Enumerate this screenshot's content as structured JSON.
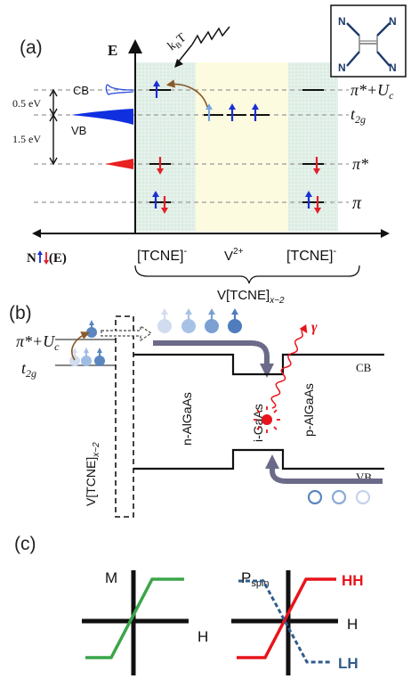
{
  "panel_a": {
    "label": "(a)",
    "energy_axis": "E",
    "kbt": "k",
    "kbt_sub": "B",
    "kbt_tail": "T",
    "cb": "CB",
    "vb": "VB",
    "gap_05": "0.5 eV",
    "gap_15": "1.5 eV",
    "level_pi_star_u": "π*+U",
    "level_pi_star_u_sub": "c",
    "level_t2g": "t",
    "level_t2g_sub": "2g",
    "level_pi_star": "π*",
    "level_pi": "π",
    "dos_label": "N",
    "dos_label_tail": "(E)",
    "region_left": "[TCNE]",
    "region_left_sup": "-",
    "region_mid": "V",
    "region_mid_sup": "2+",
    "region_right": "[TCNE]",
    "region_right_sup": "-",
    "compound": "V[TCNE]",
    "compound_sub": "x~2",
    "molecule_atoms": [
      "N",
      "N",
      "N",
      "N"
    ]
  },
  "panel_b": {
    "label": "(b)",
    "level_pi_star_u": "π*+U",
    "level_pi_star_u_sub": "c",
    "level_t2g": "t",
    "level_t2g_sub": "2g",
    "vtcne": "V[TCNE]",
    "vtcne_sub": "x~2",
    "n_layer": "n-AlGaAs",
    "i_layer": "i-GaAs",
    "p_layer": "p-AlGaAs",
    "cb": "CB",
    "vb": "VB",
    "photon": "γ"
  },
  "panel_c": {
    "label": "(c)",
    "m_axis": "M",
    "h_axis_left": "H",
    "p_axis": "P",
    "p_axis_sub": "spin",
    "h_axis_right": "H",
    "hh": "HH",
    "lh": "LH"
  },
  "colors": {
    "spin_up": "#1b2fd6",
    "spin_down": "#e0202a",
    "spin_up_light": "#7aa6e8",
    "vb_fill": "#1030e0",
    "pi_star_fill": "#e82020",
    "green": "#3aa64a",
    "hh": "#e8141b",
    "lh": "#2f5d8c",
    "arrow_grey": "#6b6a88",
    "ball_blue": "#5b86c0",
    "region_green": "#e7f3ec",
    "region_yellow": "#fdfbdf"
  },
  "icons": [
    "tcne-molecule-icon",
    "kbt-wave-icon",
    "photon-wave-icon",
    "spin-up-arrow-icon",
    "spin-down-arrow-icon"
  ]
}
